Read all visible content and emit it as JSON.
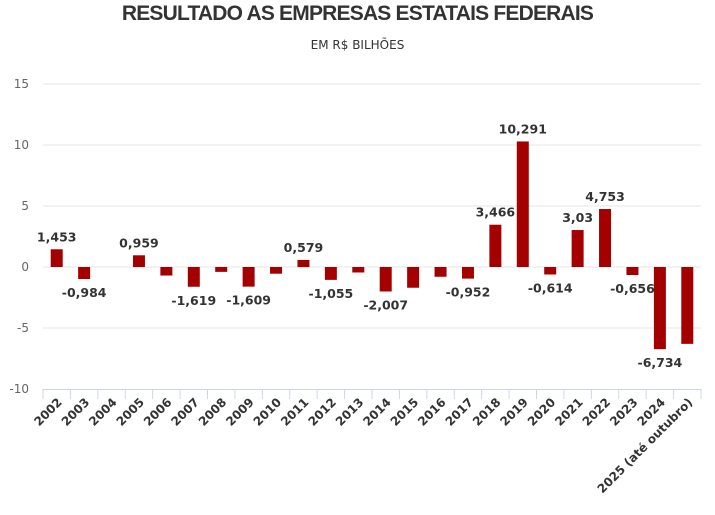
{
  "chart_data": {
    "type": "bar",
    "title": "RESULTADO AS EMPRESAS ESTATAIS FEDERAIS",
    "subtitle": "EM R$ BILHÕES",
    "xlabel": "",
    "ylabel": "",
    "ylim": [
      -10,
      15
    ],
    "yticks": [
      15,
      10,
      5,
      0,
      -5,
      -10
    ],
    "grid": true,
    "legend": "none",
    "bar_color": "#a50000",
    "categories": [
      "2002",
      "2003",
      "2004",
      "2005",
      "2006",
      "2007",
      "2008",
      "2009",
      "2010",
      "2011",
      "2012",
      "2013",
      "2014",
      "2015",
      "2016",
      "2017",
      "2018",
      "2019",
      "2020",
      "2021",
      "2022",
      "2023",
      "2024",
      "2025 (até outubro)"
    ],
    "values": [
      1.453,
      -0.984,
      0,
      0.959,
      -0.7,
      -1.619,
      -0.4,
      -1.609,
      -0.55,
      0.579,
      -1.055,
      -0.45,
      -2.007,
      -1.7,
      -0.8,
      -0.952,
      3.466,
      10.291,
      -0.614,
      3.03,
      4.753,
      -0.656,
      -6.734,
      -6.3
    ],
    "data_labels": [
      "1,453",
      "-0,984",
      "",
      "0,959",
      "",
      "-1,619",
      "",
      "-1,609",
      "",
      "0,579",
      "-1,055",
      "",
      "-2,007",
      "",
      "",
      "-0,952",
      "3,466",
      "10,291",
      "-0,614",
      "3,03",
      "4,753",
      "-0,656",
      "-6,734",
      ""
    ]
  }
}
